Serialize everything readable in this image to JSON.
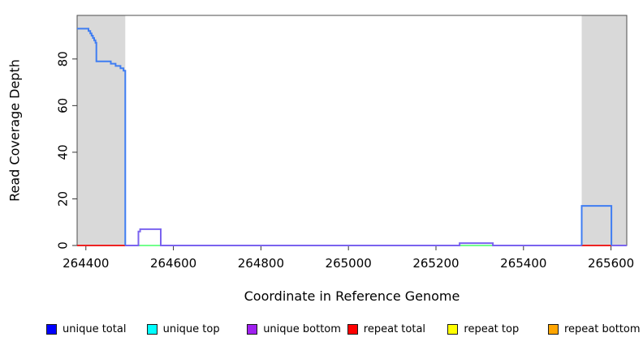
{
  "chart_data": {
    "type": "line",
    "title": "",
    "xlabel": "Coordinate in Reference Genome",
    "ylabel": "Read Coverage Depth",
    "xlim": [
      264380,
      265636
    ],
    "ylim": [
      0,
      98.7
    ],
    "x_ticks": [
      264400,
      264600,
      264800,
      265000,
      265200,
      265400,
      265600
    ],
    "y_ticks": [
      0,
      20,
      40,
      60,
      80
    ],
    "grid": false,
    "legend_position": "bottom",
    "highlight_bands": [
      {
        "name": "left-gray-region",
        "x1": 264380,
        "x2": 264490,
        "color": "#d9d9d9"
      },
      {
        "name": "right-gray-region",
        "x1": 265533,
        "x2": 265636,
        "color": "#d9d9d9"
      }
    ],
    "series": [
      {
        "name": "repeat total",
        "color": "#ee2222",
        "opacity": 1,
        "segments": [
          [
            [
              264380,
              0
            ],
            [
              264490,
              0
            ]
          ],
          [
            [
              265533,
              0
            ],
            [
              265601,
              0
            ]
          ]
        ]
      },
      {
        "name": "repeat top",
        "color": "#ffff00",
        "opacity": 1,
        "segments": [
          [
            [
              264520,
              0
            ],
            [
              264571,
              0
            ]
          ],
          [
            [
              265254,
              0
            ],
            [
              265330,
              0
            ]
          ]
        ]
      },
      {
        "name": "unique top",
        "color": "#00ffff",
        "opacity": 0.55,
        "segments": [
          [
            [
              264520,
              0
            ],
            [
              264571,
              0
            ]
          ],
          [
            [
              265254,
              0
            ],
            [
              265330,
              0
            ]
          ]
        ]
      },
      {
        "name": "unique bottom",
        "color": "#7a63ef",
        "opacity": 1,
        "segments": [
          [
            [
              264490,
              0
            ],
            [
              264520,
              0
            ],
            [
              264520,
              6
            ],
            [
              264524,
              6
            ],
            [
              264524,
              7
            ],
            [
              264571,
              7
            ],
            [
              264571,
              0
            ],
            [
              265254,
              0
            ],
            [
              265254,
              1
            ],
            [
              265330,
              1
            ],
            [
              265330,
              0
            ],
            [
              265533,
              0
            ]
          ],
          [
            [
              265601,
              0
            ],
            [
              265636,
              0
            ]
          ]
        ]
      },
      {
        "name": "unique total",
        "color": "#3f7df2",
        "opacity": 1,
        "segments": [
          [
            [
              264380,
              93
            ],
            [
              264406,
              93
            ],
            [
              264406,
              92
            ],
            [
              264410,
              92
            ],
            [
              264410,
              91
            ],
            [
              264413,
              91
            ],
            [
              264413,
              90
            ],
            [
              264416,
              90
            ],
            [
              264416,
              89
            ],
            [
              264419,
              89
            ],
            [
              264419,
              88
            ],
            [
              264422,
              88
            ],
            [
              264422,
              87
            ],
            [
              264424,
              87
            ],
            [
              264424,
              79
            ],
            [
              264457,
              79
            ],
            [
              264457,
              78
            ],
            [
              264468,
              78
            ],
            [
              264468,
              77
            ],
            [
              264479,
              77
            ],
            [
              264479,
              76
            ],
            [
              264486,
              76
            ],
            [
              264486,
              75
            ],
            [
              264490,
              75
            ],
            [
              264490,
              0
            ]
          ],
          [
            [
              265533,
              0
            ],
            [
              265533,
              17
            ],
            [
              265601,
              17
            ],
            [
              265601,
              0
            ]
          ]
        ]
      }
    ]
  },
  "legend": {
    "items": [
      {
        "label": "unique total",
        "color": "#0000ff"
      },
      {
        "label": "unique top",
        "color": "#00ffff"
      },
      {
        "label": "unique bottom",
        "color": "#a020f0"
      },
      {
        "label": "repeat total",
        "color": "#ff0000"
      },
      {
        "label": "repeat top",
        "color": "#ffff00"
      },
      {
        "label": "repeat bottom",
        "color": "#ffa500"
      }
    ]
  }
}
